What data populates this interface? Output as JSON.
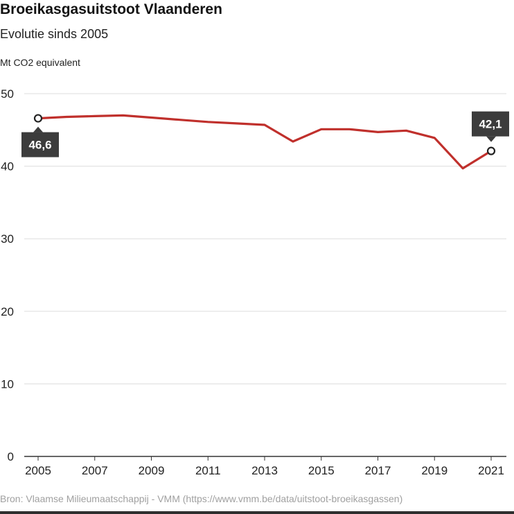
{
  "header": {
    "title": "Broeikasgasuitstoot Vlaanderen",
    "subtitle": "Evolutie sinds 2005",
    "unit_label": "Mt CO2 equivalent"
  },
  "footer": {
    "source": "Bron: Vlaamse Milieumaatschappij - VMM (https://www.vmm.be/data/uitstoot-broeikasgassen)"
  },
  "colors": {
    "line": "#c0302c",
    "label_box": "#3c3c3c",
    "grid": "#dddddd"
  },
  "chart_data": {
    "type": "line",
    "title": "Broeikasgasuitstoot Vlaanderen",
    "subtitle": "Evolutie sinds 2005",
    "ylabel": "Mt CO2 equivalent",
    "xlabel": "",
    "ylim": [
      0,
      50
    ],
    "yticks": [
      0,
      10,
      20,
      30,
      40,
      50
    ],
    "xlim": [
      2005,
      2021
    ],
    "xticks": [
      2005,
      2007,
      2009,
      2011,
      2013,
      2015,
      2017,
      2019,
      2021
    ],
    "grid": true,
    "series": [
      {
        "name": "Broeikasgasuitstoot",
        "x": [
          2005,
          2006,
          2007,
          2008,
          2009,
          2010,
          2011,
          2012,
          2013,
          2014,
          2015,
          2016,
          2017,
          2018,
          2019,
          2020,
          2021
        ],
        "values": [
          46.6,
          46.8,
          46.9,
          47.0,
          46.7,
          46.4,
          46.1,
          45.9,
          45.7,
          43.4,
          45.1,
          45.1,
          44.7,
          44.9,
          43.9,
          39.7,
          42.1
        ]
      }
    ],
    "annotations": [
      {
        "x": 2005,
        "label": "46,6",
        "position": "below"
      },
      {
        "x": 2021,
        "label": "42,1",
        "position": "above"
      }
    ]
  }
}
